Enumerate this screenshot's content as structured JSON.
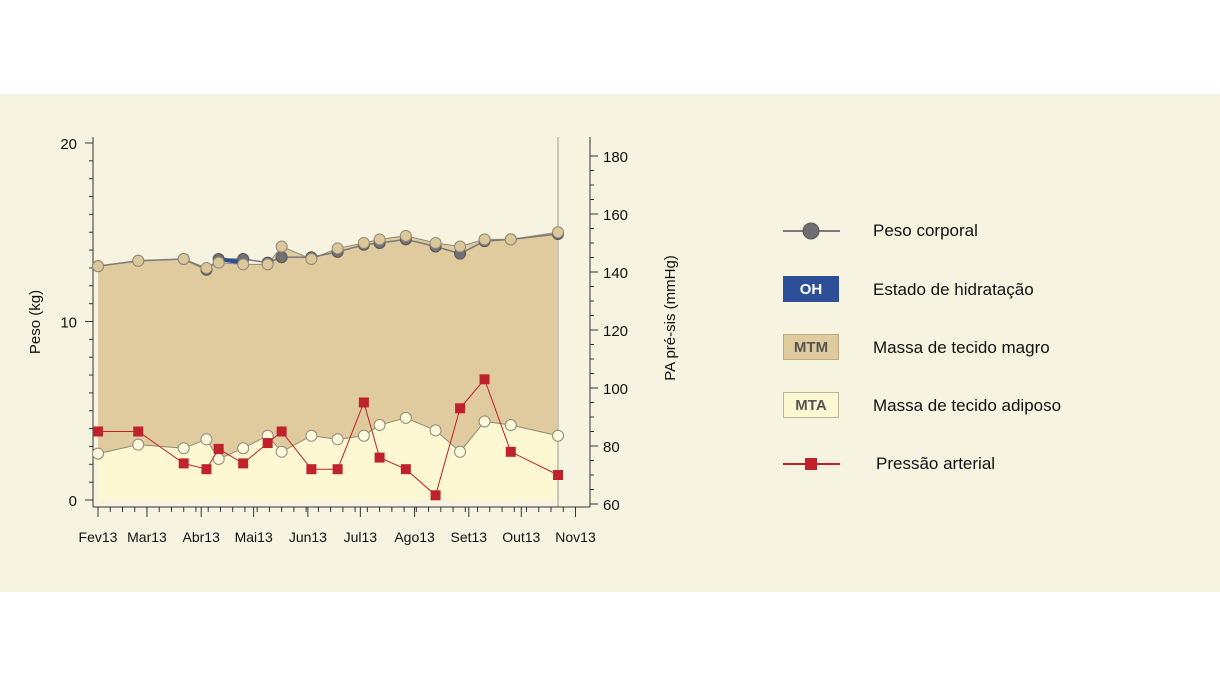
{
  "chart_data": {
    "type": "area",
    "ylabel_left": "Peso (kg)",
    "ylabel_right": "PA pré-sis (mmHg)",
    "ylim_left": [
      0,
      20
    ],
    "ylim_right": [
      60,
      180
    ],
    "yticks_left": [
      0,
      10,
      20
    ],
    "yticks_right": [
      60,
      80,
      100,
      120,
      140,
      160,
      180
    ],
    "xlim_days": [
      0,
      275
    ],
    "month_ticks": [
      {
        "label": "Fev13",
        "day": 0
      },
      {
        "label": "Mar13",
        "day": 28
      },
      {
        "label": "Abr13",
        "day": 59
      },
      {
        "label": "Mai13",
        "day": 89
      },
      {
        "label": "Jun13",
        "day": 120
      },
      {
        "label": "Jul13",
        "day": 150
      },
      {
        "label": "Ago13",
        "day": 181
      },
      {
        "label": "Set13",
        "day": 212
      },
      {
        "label": "Out13",
        "day": 242
      },
      {
        "label": "Nov13",
        "day": 273
      }
    ],
    "series": [
      {
        "name": "Peso corporal",
        "color": "#7a7a7a",
        "points": [
          [
            0,
            13.1
          ],
          [
            23,
            13.4
          ],
          [
            49,
            13.5
          ],
          [
            62,
            12.9
          ],
          [
            69,
            13.5
          ],
          [
            83,
            13.5
          ],
          [
            97,
            13.3
          ],
          [
            105,
            13.6
          ],
          [
            122,
            13.6
          ],
          [
            137,
            13.9
          ],
          [
            152,
            14.3
          ],
          [
            161,
            14.4
          ],
          [
            176,
            14.6
          ],
          [
            193,
            14.2
          ],
          [
            207,
            13.8
          ],
          [
            221,
            14.5
          ],
          [
            236,
            14.6
          ],
          [
            263,
            14.9
          ]
        ]
      },
      {
        "name": "Massa de tecido magro",
        "color": "#dfcb9d",
        "points": [
          [
            0,
            13.1
          ],
          [
            23,
            13.4
          ],
          [
            49,
            13.5
          ],
          [
            62,
            13.0
          ],
          [
            69,
            13.3
          ],
          [
            83,
            13.2
          ],
          [
            97,
            13.2
          ],
          [
            105,
            14.2
          ],
          [
            122,
            13.5
          ],
          [
            137,
            14.1
          ],
          [
            152,
            14.4
          ],
          [
            161,
            14.6
          ],
          [
            176,
            14.8
          ],
          [
            193,
            14.4
          ],
          [
            207,
            14.2
          ],
          [
            221,
            14.6
          ],
          [
            236,
            14.6
          ],
          [
            263,
            15.0
          ]
        ]
      },
      {
        "name": "Massa de tecido adiposo",
        "color": "#fdf8d2",
        "points": [
          [
            0,
            2.6
          ],
          [
            23,
            3.1
          ],
          [
            49,
            2.9
          ],
          [
            62,
            3.4
          ],
          [
            69,
            2.3
          ],
          [
            83,
            2.9
          ],
          [
            97,
            3.6
          ],
          [
            105,
            2.7
          ],
          [
            122,
            3.6
          ],
          [
            137,
            3.4
          ],
          [
            152,
            3.6
          ],
          [
            161,
            4.2
          ],
          [
            176,
            4.6
          ],
          [
            193,
            3.9
          ],
          [
            207,
            2.7
          ],
          [
            221,
            4.4
          ],
          [
            236,
            4.2
          ],
          [
            263,
            3.6
          ]
        ]
      },
      {
        "name": "Pressão arterial",
        "color": "#c0222b",
        "points": [
          [
            0,
            85
          ],
          [
            23,
            85
          ],
          [
            49,
            74
          ],
          [
            62,
            72
          ],
          [
            69,
            79
          ],
          [
            83,
            74
          ],
          [
            97,
            81
          ],
          [
            105,
            85
          ],
          [
            122,
            72
          ],
          [
            137,
            72
          ],
          [
            152,
            95
          ],
          [
            161,
            76
          ],
          [
            176,
            72
          ],
          [
            193,
            63
          ],
          [
            207,
            93
          ],
          [
            221,
            103
          ],
          [
            236,
            78
          ],
          [
            263,
            70
          ]
        ]
      }
    ],
    "oh_segment": [
      [
        69,
        13.5
      ],
      [
        83,
        13.3
      ]
    ]
  },
  "legend": {
    "items": [
      {
        "label": "Peso corporal"
      },
      {
        "label": "Estado de hidratação",
        "swatch": "OH"
      },
      {
        "label": "Massa de tecido magro",
        "swatch": "MTM"
      },
      {
        "label": "Massa de tecido adiposo",
        "swatch": "MTA"
      },
      {
        "label": "Pressão arterial"
      }
    ]
  },
  "colors": {
    "panel": "#f6f4e0",
    "lean": "#dfcb9d",
    "adipose": "#fdf8d2",
    "hydration": "#2c4f97",
    "weight": "#7a7a7a",
    "pressure": "#c0222b"
  }
}
